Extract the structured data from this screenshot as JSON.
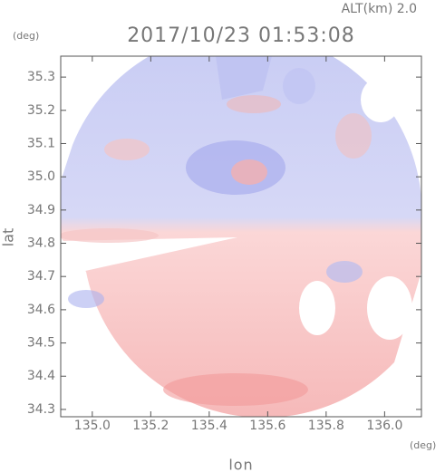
{
  "chart_data": {
    "type": "radar-field",
    "title": "2017/10/23 01:53:08",
    "subtitle": "ALT(km) 2.0",
    "x_label": "lon",
    "y_label": "lat",
    "x_unit": "(deg)",
    "y_unit": "(deg)",
    "xlim": [
      134.892,
      136.126
    ],
    "ylim": [
      34.278,
      35.363
    ],
    "xticks": [
      {
        "value": 135.0,
        "label": "135.0"
      },
      135.2,
      135.4,
      135.6,
      135.8,
      {
        "value": 136.0,
        "label": "136.0"
      }
    ],
    "yticks": [
      34.3,
      34.4,
      34.5,
      34.6,
      34.7,
      34.8,
      34.9,
      {
        "value": 35.0,
        "label": "35.0"
      },
      35.1,
      35.2,
      35.3
    ]
  }
}
